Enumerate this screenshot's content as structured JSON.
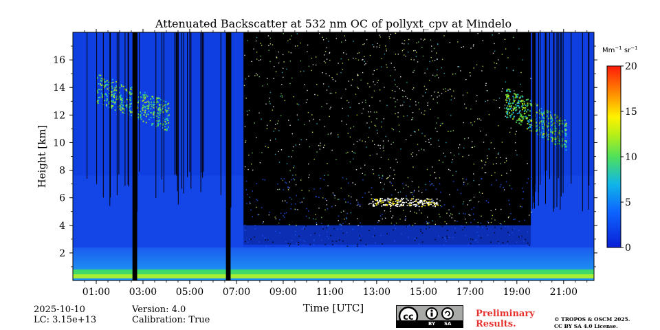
{
  "chart_data": {
    "type": "heatmap",
    "title": "Attenuated Backscatter at 532 nm OC of pollyxt_cpv at Mindelo",
    "xlabel": "Time [UTC]",
    "ylabel": "Height [km]",
    "x_range_hours": [
      0.0,
      22.3
    ],
    "ylim": [
      0,
      18
    ],
    "x_ticks": [
      "01:00",
      "03:00",
      "05:00",
      "07:00",
      "09:00",
      "11:00",
      "13:00",
      "15:00",
      "17:00",
      "19:00",
      "21:00"
    ],
    "x_tick_hours": [
      1,
      3,
      5,
      7,
      9,
      11,
      13,
      15,
      17,
      19,
      21
    ],
    "y_ticks": [
      "2",
      "4",
      "6",
      "8",
      "10",
      "12",
      "14",
      "16"
    ],
    "y_tick_values": [
      2,
      4,
      6,
      8,
      10,
      12,
      14,
      16
    ],
    "colorbar": {
      "unit_base": "Mm",
      "unit_exp1": "−1",
      "unit_mid": " sr",
      "unit_exp2": "−1",
      "min": 0,
      "max": 20,
      "ticks": [
        "0",
        "5",
        "10",
        "15",
        "20"
      ],
      "tick_values": [
        0,
        5,
        10,
        15,
        20
      ],
      "colormap": "jet"
    },
    "features": {
      "surface_layer_km": [
        0,
        0.8
      ],
      "boundary_layer_top_km": 2.4,
      "cloud_layer_km": [
        5.4,
        6.0
      ],
      "cloud_time_hours": [
        12.7,
        15.6
      ],
      "cirrus_early_km": [
        11,
        14
      ],
      "cirrus_early_hours": [
        1.0,
        4.1
      ],
      "cirrus_late_km": [
        9.5,
        13
      ],
      "cirrus_late_hours": [
        18.5,
        21.1
      ],
      "daylight_noise_hours": [
        7.3,
        19.6
      ],
      "missing_data_hours": [
        [
          2.55,
          2.75
        ],
        [
          6.55,
          6.75
        ]
      ]
    }
  },
  "footer": {
    "date": "2025-10-10",
    "lc": "LC: 3.15e+13",
    "version": "Version: 4.0",
    "calibration": "Calibration: True",
    "preliminary_line1": "Preliminary",
    "preliminary_line2": "Results.",
    "copyright_line1": "© TROPOS & OSCM 2025.",
    "copyright_line2": "CC BY SA 4.0 License.",
    "cc_by": "BY",
    "cc_sa": "SA"
  }
}
